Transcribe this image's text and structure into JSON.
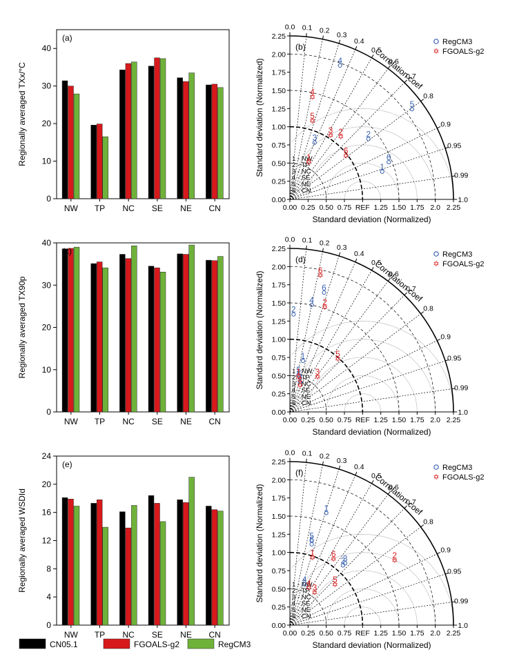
{
  "chart_data": [
    {
      "type": "bar",
      "panel": "(a)",
      "ylabel": "Regionally averaged TXx/°C",
      "categories": [
        "NW",
        "TP",
        "NC",
        "SE",
        "NE",
        "CN"
      ],
      "ylim": [
        0,
        45
      ],
      "yticks": [
        0,
        10,
        20,
        30,
        40
      ],
      "series": [
        {
          "name": "CN05.1",
          "values": [
            31.4,
            19.6,
            34.3,
            35.3,
            32.2,
            30.3
          ],
          "color": "#000000"
        },
        {
          "name": "FGOALS-g2",
          "values": [
            30.0,
            19.9,
            36.0,
            37.5,
            31.2,
            30.5
          ],
          "color": "#d7191c"
        },
        {
          "name": "RegCM3",
          "values": [
            27.9,
            16.5,
            36.4,
            37.3,
            33.5,
            29.6
          ],
          "color": "#6fb23a"
        }
      ]
    },
    {
      "type": "taylor",
      "panel": "(b)",
      "xlabel": "Standard deviation (Normalized)",
      "ylabel": "Standard deviation (Normalized)",
      "corr_label": "Correlation coef",
      "corr_ticks": [
        "0.0",
        "0.1",
        "0.2",
        "0.3",
        "0.4",
        "0.5",
        "0.6",
        "0.7",
        "0.8",
        "0.9",
        "0.95",
        "0.99",
        "1.0"
      ],
      "std_ticks": [
        "0.00",
        "0.25",
        "0.50",
        "0.75",
        "REF",
        "1.25",
        "1.50",
        "1.75",
        "2.0",
        "2.25"
      ],
      "std_ticks_y": [
        "0.00",
        "0.25",
        "0.50",
        "0.75",
        "1.00",
        "1.25",
        "1.50",
        "1.75",
        "2.00",
        "2.25"
      ],
      "regions": [
        "1 - NW",
        "2 - TP",
        "3 - NC",
        "4 - SE",
        "5 - NE",
        "6 - CN"
      ],
      "series": [
        {
          "name": "RegCM3",
          "marker": "circle",
          "color": "#3a63b0",
          "points": [
            {
              "id": "1",
              "x": 1.27,
              "y": 0.42
            },
            {
              "id": "2",
              "x": 1.08,
              "y": 0.87
            },
            {
              "id": "3",
              "x": 0.34,
              "y": 0.82
            },
            {
              "id": "4",
              "x": 0.69,
              "y": 1.88
            },
            {
              "id": "5",
              "x": 1.68,
              "y": 1.28
            },
            {
              "id": "6",
              "x": 1.36,
              "y": 0.55
            }
          ]
        },
        {
          "name": "FGOALS-g2",
          "marker": "star",
          "color": "#d7191c",
          "points": [
            {
              "id": "1",
              "x": 0.26,
              "y": 0.55
            },
            {
              "id": "2",
              "x": 0.7,
              "y": 0.9
            },
            {
              "id": "3",
              "x": 0.56,
              "y": 0.92
            },
            {
              "id": "4",
              "x": 0.31,
              "y": 1.45
            },
            {
              "id": "5",
              "x": 0.31,
              "y": 1.12
            },
            {
              "id": "6",
              "x": 0.77,
              "y": 0.64
            }
          ]
        }
      ]
    },
    {
      "type": "bar",
      "panel": "(c)",
      "ylabel": "Regionally averaged TX90p",
      "categories": [
        "NW",
        "TP",
        "NC",
        "SE",
        "NE",
        "CN"
      ],
      "ylim": [
        0,
        40
      ],
      "yticks": [
        0,
        10,
        20,
        30,
        40
      ],
      "series": [
        {
          "name": "CN05.1",
          "values": [
            38.6,
            35.1,
            37.3,
            34.5,
            37.4,
            35.9
          ],
          "color": "#000000"
        },
        {
          "name": "FGOALS-g2",
          "values": [
            38.7,
            35.5,
            36.3,
            34.1,
            37.3,
            35.8
          ],
          "color": "#d7191c"
        },
        {
          "name": "RegCM3",
          "values": [
            39.0,
            34.1,
            39.3,
            33.1,
            39.5,
            36.8
          ],
          "color": "#6fb23a"
        }
      ]
    },
    {
      "type": "taylor",
      "panel": "(d)",
      "xlabel": "Standard deviation (Normalized)",
      "ylabel": "Standard deviation (Normalized)",
      "corr_label": "Correlation coef",
      "corr_ticks": [
        "0.0",
        "0.1",
        "0.2",
        "0.3",
        "0.4",
        "0.5",
        "0.6",
        "0.7",
        "0.8",
        "0.9",
        "0.95",
        "0.99",
        "1.0"
      ],
      "std_ticks": [
        "0.00",
        "0.25",
        "0.50",
        "0.75",
        "REF",
        "1.25",
        "1.50",
        "1.75",
        "2.0",
        "2.25"
      ],
      "std_ticks_y": [
        "0.00",
        "0.25",
        "0.50",
        "0.75",
        "1.00",
        "1.25",
        "1.50",
        "1.75",
        "2.00",
        "2.25"
      ],
      "regions": [
        "1 - NW",
        "2 - TP",
        "3 - NC",
        "4 - SE",
        "5 - NE",
        "6 - CN"
      ],
      "series": [
        {
          "name": "RegCM3",
          "marker": "circle",
          "color": "#3a63b0",
          "points": [
            {
              "id": "1",
              "x": 0.18,
              "y": 0.74
            },
            {
              "id": "2",
              "x": 0.05,
              "y": 1.38
            },
            {
              "id": "3",
              "x": 0.14,
              "y": 0.45
            },
            {
              "id": "4",
              "x": 0.3,
              "y": 1.51
            },
            {
              "id": "5",
              "x": 0.12,
              "y": 0.55
            },
            {
              "id": "6",
              "x": 0.47,
              "y": 1.68
            }
          ]
        },
        {
          "name": "FGOALS-g2",
          "marker": "star",
          "color": "#d7191c",
          "points": [
            {
              "id": "1",
              "x": 0.12,
              "y": 0.52
            },
            {
              "id": "2",
              "x": 0.48,
              "y": 1.48
            },
            {
              "id": "3",
              "x": 0.38,
              "y": 0.52
            },
            {
              "id": "4",
              "x": 0.14,
              "y": 0.41
            },
            {
              "id": "5",
              "x": 0.66,
              "y": 0.77
            },
            {
              "id": "6",
              "x": 0.42,
              "y": 1.92
            }
          ]
        }
      ]
    },
    {
      "type": "bar",
      "panel": "(e)",
      "ylabel": "Regionally averaged WSDId",
      "categories": [
        "NW",
        "TP",
        "NC",
        "SE",
        "NE",
        "CN"
      ],
      "ylim": [
        0,
        24
      ],
      "yticks": [
        0,
        4,
        8,
        12,
        16,
        20,
        24
      ],
      "series": [
        {
          "name": "CN05.1",
          "values": [
            18.1,
            17.3,
            16.1,
            18.4,
            17.8,
            16.9
          ],
          "color": "#000000"
        },
        {
          "name": "FGOALS-g2",
          "values": [
            17.9,
            17.8,
            13.8,
            17.3,
            17.4,
            16.4
          ],
          "color": "#d7191c"
        },
        {
          "name": "RegCM3",
          "values": [
            16.9,
            13.9,
            17.0,
            14.7,
            21.0,
            16.2
          ],
          "color": "#6fb23a"
        }
      ]
    },
    {
      "type": "taylor",
      "panel": "(f)",
      "xlabel": "Standard deviation (Normalized)",
      "ylabel": "Standard deviation (Normalized)",
      "corr_label": "Correlation coef",
      "corr_ticks": [
        "0.0",
        "0.1",
        "0.2",
        "0.3",
        "0.4",
        "0.5",
        "0.6",
        "0.7",
        "0.8",
        "0.9",
        "0.95",
        "0.99",
        "1.0"
      ],
      "std_ticks": [
        "0.00",
        "0.25",
        "0.50",
        "0.75",
        "REF",
        "1.25",
        "1.50",
        "1.75",
        "2.0",
        "2.25"
      ],
      "std_ticks_y": [
        "0.00",
        "0.25",
        "0.50",
        "0.75",
        "1.00",
        "1.25",
        "1.50",
        "1.75",
        "2.00",
        "2.25"
      ],
      "regions": [
        "1 - NW",
        "2 - TP",
        "3 - NC",
        "4 - SE",
        "5 - NE",
        "6 - CN"
      ],
      "series": [
        {
          "name": "RegCM3",
          "marker": "circle",
          "color": "#3a63b0",
          "points": [
            {
              "id": "1",
              "x": 0.5,
              "y": 1.58
            },
            {
              "id": "2",
              "x": 0.73,
              "y": 0.86
            },
            {
              "id": "3",
              "x": 0.76,
              "y": 0.89
            },
            {
              "id": "4",
              "x": 0.2,
              "y": 0.6
            },
            {
              "id": "5",
              "x": 0.3,
              "y": 1.2
            },
            {
              "id": "6",
              "x": 0.3,
              "y": 1.15
            }
          ]
        },
        {
          "name": "FGOALS-g2",
          "marker": "star",
          "color": "#d7191c",
          "points": [
            {
              "id": "1",
              "x": 0.31,
              "y": 0.97
            },
            {
              "id": "2",
              "x": 1.44,
              "y": 0.93
            },
            {
              "id": "3",
              "x": 0.34,
              "y": 0.49
            },
            {
              "id": "4",
              "x": 0.26,
              "y": 0.55
            },
            {
              "id": "5",
              "x": 0.62,
              "y": 0.6
            },
            {
              "id": "6",
              "x": 0.6,
              "y": 0.95
            }
          ]
        }
      ]
    }
  ],
  "legend": {
    "items": [
      {
        "label": "CN05.1",
        "color": "#000000"
      },
      {
        "label": "FGOALS-g2",
        "color": "#d7191c"
      },
      {
        "label": "RegCM3",
        "color": "#6fb23a"
      }
    ]
  }
}
